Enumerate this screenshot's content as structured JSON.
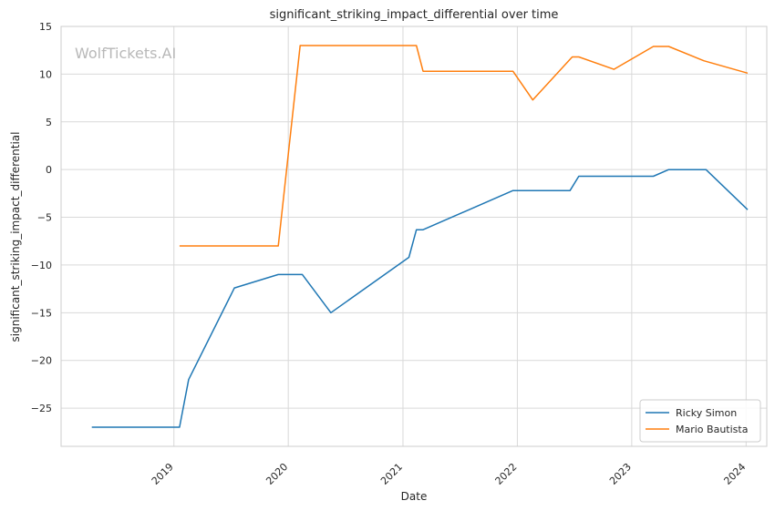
{
  "chart_data": {
    "type": "line",
    "title": "significant_striking_impact_differential over time",
    "xlabel": "Date",
    "ylabel": "significant_striking_impact_differential",
    "watermark": "WolfTickets.AI",
    "xlim": [
      "2018-01-06",
      "2024-03-07"
    ],
    "ylim": [
      -29,
      15
    ],
    "x_ticks": [
      {
        "date": "2019-01-01",
        "label": "2019"
      },
      {
        "date": "2020-01-01",
        "label": "2020"
      },
      {
        "date": "2021-01-01",
        "label": "2021"
      },
      {
        "date": "2022-01-01",
        "label": "2022"
      },
      {
        "date": "2023-01-01",
        "label": "2023"
      },
      {
        "date": "2024-01-01",
        "label": "2024"
      }
    ],
    "y_ticks": [
      {
        "value": 15,
        "label": "15"
      },
      {
        "value": 10,
        "label": "10"
      },
      {
        "value": 5,
        "label": "5"
      },
      {
        "value": 0,
        "label": "0"
      },
      {
        "value": -5,
        "label": "−5"
      },
      {
        "value": -10,
        "label": "−10"
      },
      {
        "value": -15,
        "label": "−15"
      },
      {
        "value": -20,
        "label": "−20"
      },
      {
        "value": -25,
        "label": "−25"
      }
    ],
    "grid": true,
    "legend_position": "bottom-right",
    "series": [
      {
        "name": "Ricky Simon",
        "color": "#1f77b4",
        "points": [
          {
            "x": "2018-04-14",
            "y": -27.0
          },
          {
            "x": "2019-01-19",
            "y": -27.0
          },
          {
            "x": "2019-02-17",
            "y": -22.0
          },
          {
            "x": "2019-07-13",
            "y": -12.4
          },
          {
            "x": "2019-11-30",
            "y": -11.0
          },
          {
            "x": "2020-02-15",
            "y": -11.0
          },
          {
            "x": "2020-05-16",
            "y": -15.0
          },
          {
            "x": "2021-01-20",
            "y": -9.2
          },
          {
            "x": "2021-02-13",
            "y": -6.3
          },
          {
            "x": "2021-03-06",
            "y": -6.3
          },
          {
            "x": "2021-12-18",
            "y": -2.2
          },
          {
            "x": "2022-06-18",
            "y": -2.2
          },
          {
            "x": "2022-07-16",
            "y": -0.7
          },
          {
            "x": "2023-03-11",
            "y": -0.7
          },
          {
            "x": "2023-04-29",
            "y": 0.0
          },
          {
            "x": "2023-08-26",
            "y": 0.0
          },
          {
            "x": "2024-01-06",
            "y": -4.2
          }
        ]
      },
      {
        "name": "Mario Bautista",
        "color": "#ff7f0e",
        "points": [
          {
            "x": "2019-01-19",
            "y": -8.0
          },
          {
            "x": "2019-11-30",
            "y": -8.0
          },
          {
            "x": "2020-02-08",
            "y": 13.0
          },
          {
            "x": "2021-02-13",
            "y": 13.0
          },
          {
            "x": "2021-03-06",
            "y": 10.3
          },
          {
            "x": "2021-12-18",
            "y": 10.3
          },
          {
            "x": "2022-02-19",
            "y": 7.3
          },
          {
            "x": "2022-06-25",
            "y": 11.8
          },
          {
            "x": "2022-07-16",
            "y": 11.8
          },
          {
            "x": "2022-11-05",
            "y": 10.5
          },
          {
            "x": "2023-03-11",
            "y": 12.9
          },
          {
            "x": "2023-04-29",
            "y": 12.9
          },
          {
            "x": "2023-08-19",
            "y": 11.4
          },
          {
            "x": "2024-01-06",
            "y": 10.1
          }
        ]
      }
    ]
  }
}
